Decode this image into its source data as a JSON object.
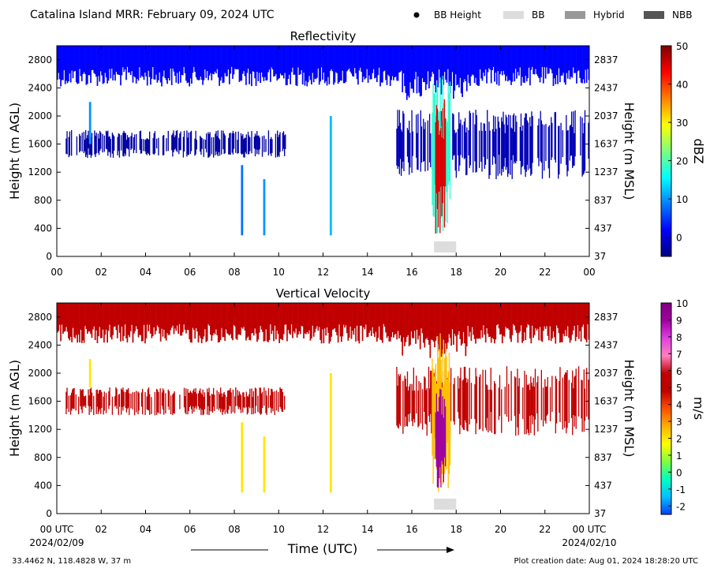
{
  "header": {
    "title": "Catalina Island MRR:  February 09, 2024 UTC",
    "legend": [
      {
        "label": "BB Height",
        "kind": "dot",
        "color": "#000000"
      },
      {
        "label": "BB",
        "kind": "box",
        "color": "#dddddd"
      },
      {
        "label": "Hybrid",
        "kind": "box",
        "color": "#999999"
      },
      {
        "label": "NBB",
        "kind": "box",
        "color": "#555555"
      }
    ]
  },
  "footer": {
    "location": "33.4462 N, 118.4828 W, 37 m",
    "creation": "Plot creation date: Aug 01, 2024 18:28:20 UTC",
    "xlabel": "Time (UTC)",
    "date_start": "2024/02/09",
    "date_end": "2024/02/10"
  },
  "chart_data": [
    {
      "type": "heatmap",
      "title": "Reflectivity",
      "ylabel": "Height (m AGL)",
      "ylabel_right": "Height (m MSL)",
      "colorbar_label": "dBZ",
      "colorbar_range": [
        -5,
        50
      ],
      "colorbar_ticks": [
        "0",
        "10",
        "20",
        "30",
        "40",
        "50"
      ],
      "colorbar_tick_values": [
        0,
        10,
        20,
        30,
        40,
        50
      ],
      "colorbar_stops": [
        "#00007f",
        "#0000ff",
        "#007fff",
        "#00ffff",
        "#7fff7f",
        "#ffff00",
        "#ff7f00",
        "#ff0000",
        "#7f0000"
      ],
      "x_ticks": [
        "00",
        "02",
        "04",
        "06",
        "08",
        "10",
        "12",
        "14",
        "16",
        "18",
        "20",
        "22",
        "00"
      ],
      "x_range": [
        0,
        24
      ],
      "y_range": [
        0,
        3000
      ],
      "y_ticks_left": [
        "0",
        "400",
        "800",
        "1200",
        "1600",
        "2000",
        "2400",
        "2800"
      ],
      "y_ticks_left_values": [
        0,
        400,
        800,
        1200,
        1600,
        2000,
        2400,
        2800
      ],
      "y_ticks_right": [
        "37",
        "437",
        "837",
        "1237",
        "1637",
        "2037",
        "2437",
        "2837"
      ],
      "cloud_top": {
        "bottom": 2700,
        "top": 3000,
        "value": 2
      },
      "features": [
        {
          "start_hour": 0.4,
          "end_hour": 10.3,
          "bottom": 1400,
          "top": 1800,
          "value": -3
        },
        {
          "start_hour": 15.3,
          "end_hour": 24.0,
          "bottom": 1100,
          "top": 2100,
          "value": -2
        },
        {
          "start_hour": 1.45,
          "end_hour": 1.55,
          "bottom": 1600,
          "top": 2200,
          "value": 10
        },
        {
          "start_hour": 8.3,
          "end_hour": 8.4,
          "bottom": 300,
          "top": 1300,
          "value": 8
        },
        {
          "start_hour": 9.3,
          "end_hour": 9.4,
          "bottom": 300,
          "top": 1100,
          "value": 10
        },
        {
          "start_hour": 12.3,
          "end_hour": 12.4,
          "bottom": 300,
          "top": 2000,
          "value": 12
        },
        {
          "start_hour": 16.9,
          "end_hour": 17.7,
          "bottom": 300,
          "top": 2600,
          "value": 18
        },
        {
          "start_hour": 17.05,
          "end_hour": 17.5,
          "bottom": 300,
          "top": 2300,
          "value": 45
        }
      ],
      "bright_band": {
        "start_hour": 17.0,
        "end_hour": 18.0,
        "label": "BB"
      }
    },
    {
      "type": "heatmap",
      "title": "Vertical Velocity",
      "ylabel": "Height (m AGL)",
      "ylabel_right": "Height (m MSL)",
      "colorbar_label": "m/s",
      "colorbar_range": [
        -2.5,
        10
      ],
      "colorbar_ticks": [
        "-2",
        "-1",
        "0",
        "1",
        "2",
        "3",
        "4",
        "5",
        "6",
        "7",
        "8",
        "9",
        "10"
      ],
      "colorbar_tick_values": [
        -2,
        -1,
        0,
        1,
        2,
        3,
        4,
        5,
        6,
        7,
        8,
        9,
        10
      ],
      "colorbar_stops": [
        "#0040ff",
        "#00c0ff",
        "#00ffc0",
        "#80ff40",
        "#ffff00",
        "#ffb000",
        "#ff5000",
        "#c00000",
        "#c00000",
        "#ff80c0",
        "#e040e0",
        "#a000a0",
        "#800080"
      ],
      "x_ticks": [
        "00 UTC",
        "02",
        "04",
        "06",
        "08",
        "10",
        "12",
        "14",
        "16",
        "18",
        "20",
        "22",
        "00 UTC"
      ],
      "x_range": [
        0,
        24
      ],
      "y_range": [
        0,
        3000
      ],
      "y_ticks_left": [
        "0",
        "400",
        "800",
        "1200",
        "1600",
        "2000",
        "2400",
        "2800"
      ],
      "y_ticks_left_values": [
        0,
        400,
        800,
        1200,
        1600,
        2000,
        2400,
        2800
      ],
      "y_ticks_right": [
        "37",
        "437",
        "837",
        "1237",
        "1637",
        "2037",
        "2437",
        "2837"
      ],
      "cloud_top": {
        "bottom": 2700,
        "top": 3000,
        "value": 5.5
      },
      "features": [
        {
          "start_hour": 0.4,
          "end_hour": 10.3,
          "bottom": 1400,
          "top": 1800,
          "value": 5.5
        },
        {
          "start_hour": 15.3,
          "end_hour": 24.0,
          "bottom": 1100,
          "top": 2100,
          "value": 5.5
        },
        {
          "start_hour": 1.45,
          "end_hour": 1.55,
          "bottom": 1800,
          "top": 2200,
          "value": 2
        },
        {
          "start_hour": 8.3,
          "end_hour": 8.4,
          "bottom": 300,
          "top": 1300,
          "value": 2
        },
        {
          "start_hour": 9.3,
          "end_hour": 9.4,
          "bottom": 300,
          "top": 1100,
          "value": 2
        },
        {
          "start_hour": 12.3,
          "end_hour": 12.4,
          "bottom": 300,
          "top": 2000,
          "value": 2
        },
        {
          "start_hour": 16.9,
          "end_hour": 17.7,
          "bottom": 300,
          "top": 2600,
          "value": 2.5
        },
        {
          "start_hour": 17.05,
          "end_hour": 17.5,
          "bottom": 300,
          "top": 1800,
          "value": 9
        }
      ],
      "bright_band": {
        "start_hour": 17.0,
        "end_hour": 18.0,
        "label": "BB"
      }
    }
  ]
}
